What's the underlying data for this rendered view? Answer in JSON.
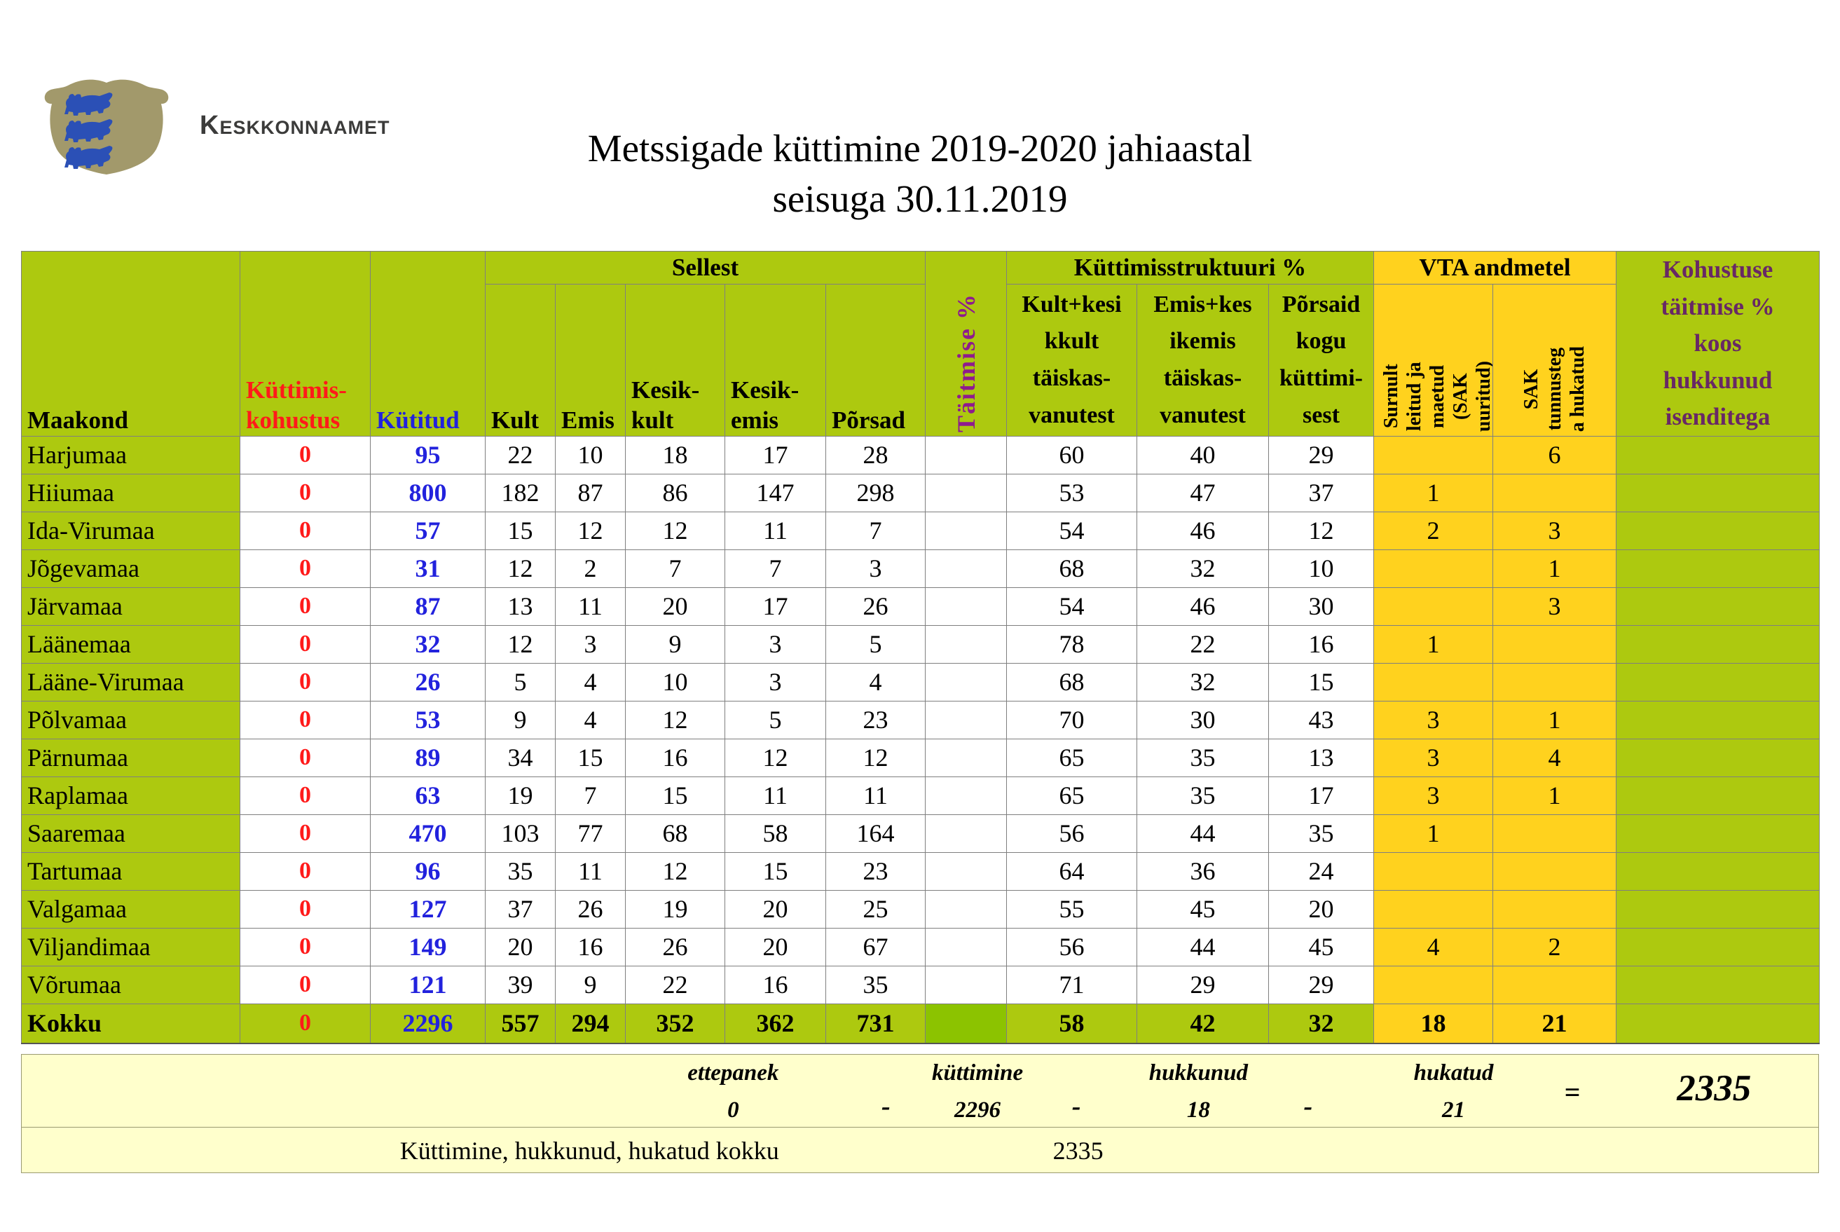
{
  "logo": {
    "org_name": "Keskkonnaamet"
  },
  "title": {
    "line1": "Metssigade küttimine 2019-2020 jahiaastal",
    "line2": "seisuga 30.11.2019"
  },
  "colors": {
    "table_green": "#ADC90F",
    "total_taitmise_green": "#8CC300",
    "vta_gold": "#FFD21E",
    "summary_cream": "#FFFFCC",
    "obligation_red": "#FF1A1A",
    "hunted_blue": "#2222DD",
    "taitmise_purple": "#8E1B8E",
    "kohustuse_purple": "#682865",
    "shield_tan": "#A2996B",
    "lion_blue": "#2B50B6",
    "logo_text_gray": "#3B3B3A"
  },
  "table": {
    "headers": {
      "maakond": "Maakond",
      "kohustus": "Küttimis-\nkohustus",
      "kutitud": "Kütitud",
      "sellest": "Sellest",
      "kult": "Kult",
      "emis": "Emis",
      "kesik_kult": "Kesik-\nkult",
      "kesik_emis": "Kesik-\nemis",
      "porsad": "Põrsad",
      "taitmise": "Täitmise %",
      "struktuur": "Küttimisstruktuuri %",
      "struct1": "Kult+kesi\nkkult\ntäiskas-\nvanutest",
      "struct2": "Emis+kes\nikemis\ntäiskas-\nvanutest",
      "struct3": "Põrsaid\nkogu\nküttimi-\nsest",
      "vta": "VTA andmetel",
      "vta1": "Surnult\nleitud ja\nmaetud\n(SAK\nuuritud)",
      "vta2": "SAK\ntunnusteg\na hukatud",
      "kohustuse": "Kohustuse\ntäitmise %\nkoos\nhukkunud\nisenditega"
    },
    "rows": [
      [
        "Harjumaa",
        "0",
        "95",
        "22",
        "10",
        "18",
        "17",
        "28",
        "",
        "60",
        "40",
        "29",
        "",
        "6",
        ""
      ],
      [
        "Hiiumaa",
        "0",
        "800",
        "182",
        "87",
        "86",
        "147",
        "298",
        "",
        "53",
        "47",
        "37",
        "1",
        "",
        ""
      ],
      [
        "Ida-Virumaa",
        "0",
        "57",
        "15",
        "12",
        "12",
        "11",
        "7",
        "",
        "54",
        "46",
        "12",
        "2",
        "3",
        ""
      ],
      [
        "Jõgevamaa",
        "0",
        "31",
        "12",
        "2",
        "7",
        "7",
        "3",
        "",
        "68",
        "32",
        "10",
        "",
        "1",
        ""
      ],
      [
        "Järvamaa",
        "0",
        "87",
        "13",
        "11",
        "20",
        "17",
        "26",
        "",
        "54",
        "46",
        "30",
        "",
        "3",
        ""
      ],
      [
        "Läänemaa",
        "0",
        "32",
        "12",
        "3",
        "9",
        "3",
        "5",
        "",
        "78",
        "22",
        "16",
        "1",
        "",
        ""
      ],
      [
        "Lääne-Virumaa",
        "0",
        "26",
        "5",
        "4",
        "10",
        "3",
        "4",
        "",
        "68",
        "32",
        "15",
        "",
        "",
        ""
      ],
      [
        "Põlvamaa",
        "0",
        "53",
        "9",
        "4",
        "12",
        "5",
        "23",
        "",
        "70",
        "30",
        "43",
        "3",
        "1",
        ""
      ],
      [
        "Pärnumaa",
        "0",
        "89",
        "34",
        "15",
        "16",
        "12",
        "12",
        "",
        "65",
        "35",
        "13",
        "3",
        "4",
        ""
      ],
      [
        "Raplamaa",
        "0",
        "63",
        "19",
        "7",
        "15",
        "11",
        "11",
        "",
        "65",
        "35",
        "17",
        "3",
        "1",
        ""
      ],
      [
        "Saaremaa",
        "0",
        "470",
        "103",
        "77",
        "68",
        "58",
        "164",
        "",
        "56",
        "44",
        "35",
        "1",
        "",
        ""
      ],
      [
        "Tartumaa",
        "0",
        "96",
        "35",
        "11",
        "12",
        "15",
        "23",
        "",
        "64",
        "36",
        "24",
        "",
        "",
        ""
      ],
      [
        "Valgamaa",
        "0",
        "127",
        "37",
        "26",
        "19",
        "20",
        "25",
        "",
        "55",
        "45",
        "20",
        "",
        "",
        ""
      ],
      [
        "Viljandimaa",
        "0",
        "149",
        "20",
        "16",
        "26",
        "20",
        "67",
        "",
        "56",
        "44",
        "45",
        "4",
        "2",
        ""
      ],
      [
        "Võrumaa",
        "0",
        "121",
        "39",
        "9",
        "22",
        "16",
        "35",
        "",
        "71",
        "29",
        "29",
        "",
        "",
        ""
      ]
    ],
    "total": [
      "Kokku",
      "0",
      "2296",
      "557",
      "294",
      "352",
      "362",
      "731",
      "",
      "58",
      "42",
      "32",
      "18",
      "21",
      ""
    ]
  },
  "summary": {
    "terms": [
      {
        "label": "ettepanek",
        "value": "0"
      },
      {
        "label": "küttimine",
        "value": "2296"
      },
      {
        "label": "hukkunud",
        "value": "18"
      },
      {
        "label": "hukatud",
        "value": "21"
      }
    ],
    "separator": "-",
    "equals": "=",
    "total": "2335",
    "footer_label": "Küttimine, hukkunud, hukatud kokku",
    "footer_value": "2335"
  }
}
